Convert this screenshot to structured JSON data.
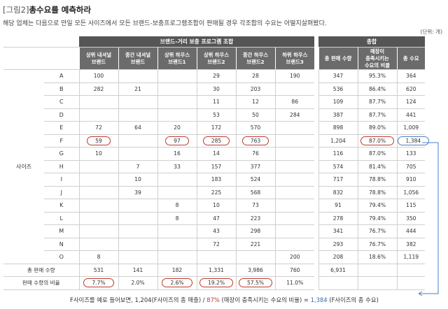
{
  "figure": {
    "tag": "[그림2]",
    "title": "총수요를 예측하라",
    "subtitle": "해당 업체는 다음으로 만일 모든 사이즈에서 모든 브랜드-보충프로그램조합이 판매될 경우 각조합의 수요는 어떨지살펴봤다.",
    "unit": "(단위: 개)"
  },
  "table": {
    "group_left": "브랜드-거리 보충 프로그램 조합",
    "group_right": "총합",
    "columns": [
      "상위 내셔널\n브랜드",
      "중간 내셔널\n브랜드",
      "상위 하우스\n브랜드1",
      "상위 하우스\n브랜드2",
      "중간 하우스\n브랜드2",
      "하위 하우스\n브랜드3"
    ],
    "total_columns": [
      "총 판매 수량",
      "매장이\n충족시키는\n수요의 비율",
      "총 수요"
    ],
    "side_label": "사이즈",
    "rows": [
      {
        "label": "A",
        "cells": [
          "100",
          "",
          "",
          "29",
          "28",
          "190"
        ],
        "totals": [
          "347",
          "95.3%",
          "364"
        ]
      },
      {
        "label": "B",
        "cells": [
          "282",
          "21",
          "",
          "30",
          "203",
          ""
        ],
        "totals": [
          "536",
          "86.4%",
          "620"
        ]
      },
      {
        "label": "C",
        "cells": [
          "",
          "",
          "",
          "11",
          "12",
          "86"
        ],
        "totals": [
          "109",
          "87.7%",
          "124"
        ]
      },
      {
        "label": "D",
        "cells": [
          "",
          "",
          "",
          "53",
          "50",
          "284"
        ],
        "totals": [
          "387",
          "87.7%",
          "441"
        ]
      },
      {
        "label": "E",
        "cells": [
          "72",
          "64",
          "20",
          "172",
          "570",
          ""
        ],
        "totals": [
          "898",
          "89.0%",
          "1,009"
        ]
      },
      {
        "label": "F",
        "cells": [
          "59",
          "",
          "97",
          "285",
          "763",
          ""
        ],
        "totals": [
          "1,204",
          "87.0%",
          "1,384"
        ]
      },
      {
        "label": "G",
        "cells": [
          "10",
          "",
          "16",
          "14",
          "76",
          ""
        ],
        "totals": [
          "116",
          "87.0%",
          "133"
        ]
      },
      {
        "label": "H",
        "cells": [
          "",
          "7",
          "33",
          "157",
          "377",
          ""
        ],
        "totals": [
          "574",
          "81.4%",
          "705"
        ]
      },
      {
        "label": "I",
        "cells": [
          "",
          "10",
          "",
          "183",
          "524",
          ""
        ],
        "totals": [
          "717",
          "78.8%",
          "910"
        ]
      },
      {
        "label": "J",
        "cells": [
          "",
          "39",
          "",
          "225",
          "568",
          ""
        ],
        "totals": [
          "832",
          "78.8%",
          "1,056"
        ]
      },
      {
        "label": "K",
        "cells": [
          "",
          "",
          "8",
          "10",
          "73",
          ""
        ],
        "totals": [
          "91",
          "79.4%",
          "115"
        ]
      },
      {
        "label": "L",
        "cells": [
          "",
          "",
          "8",
          "47",
          "223",
          ""
        ],
        "totals": [
          "278",
          "79.4%",
          "350"
        ]
      },
      {
        "label": "M",
        "cells": [
          "",
          "",
          "",
          "43",
          "298",
          ""
        ],
        "totals": [
          "341",
          "76.7%",
          "444"
        ]
      },
      {
        "label": "N",
        "cells": [
          "",
          "",
          "",
          "72",
          "221",
          ""
        ],
        "totals": [
          "293",
          "76.7%",
          "382"
        ]
      },
      {
        "label": "O",
        "cells": [
          "8",
          "",
          "",
          "",
          "",
          "200"
        ],
        "totals": [
          "208",
          "18.6%",
          "1,119"
        ]
      }
    ],
    "foot": [
      {
        "label": "총 판매 수량",
        "cells": [
          "531",
          "141",
          "182",
          "1,331",
          "3,986",
          "760"
        ],
        "totals": [
          "6,931",
          "",
          ""
        ]
      },
      {
        "label": "판매 수량의 비율",
        "cells": [
          "7.7%",
          "2.0%",
          "2.6%",
          "19.2%",
          "57.5%",
          "11.0%"
        ],
        "totals": [
          "",
          "",
          ""
        ]
      }
    ]
  },
  "note": {
    "prefix": "F사이즈를 예로 들어보면, 1,204(F사이즈의 총 매출) / ",
    "pct": "87%",
    "middle": " (매장이 충족시키는 수요의 비율) = ",
    "result": "1,384",
    "suffix": " (F사이즈의 총 수요)"
  },
  "colors": {
    "header_dark": "#555555",
    "header": "#6b6b6b",
    "circle_red": "#c0392b",
    "circle_blue": "#4a7fc0"
  }
}
